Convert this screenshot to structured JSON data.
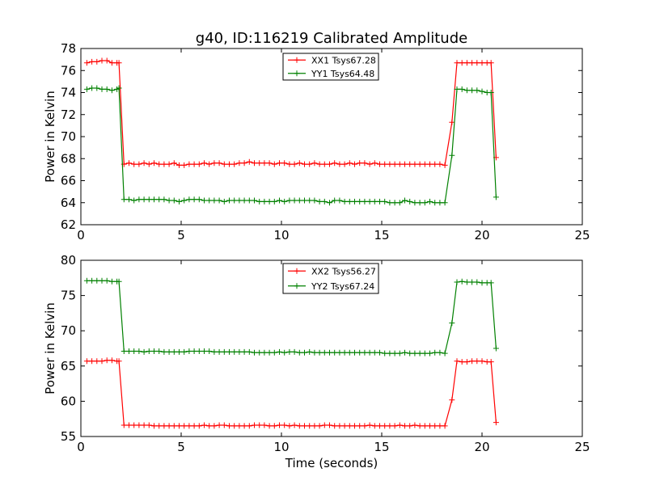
{
  "figure": {
    "title": "g40, ID:116219 Calibrated Amplitude",
    "xlabel": "Time (seconds)"
  },
  "colors": {
    "red": "#ff0000",
    "green": "#008000"
  },
  "chart_data": [
    {
      "type": "line",
      "title": "g40, ID:116219 Calibrated Amplitude",
      "xlabel": "",
      "ylabel": "Power in Kelvin",
      "xlim": [
        0,
        25
      ],
      "ylim": [
        62,
        78
      ],
      "xticks": [
        0,
        5,
        10,
        15,
        20,
        25
      ],
      "yticks": [
        62,
        64,
        66,
        68,
        70,
        72,
        74,
        76,
        78
      ],
      "legend_position": "top-center",
      "series": [
        {
          "name": "XX1 Tsys67.28",
          "color": "#ff0000",
          "x": [
            0.3,
            0.55,
            0.8,
            1.05,
            1.3,
            1.55,
            1.8,
            1.9,
            2.15,
            2.4,
            2.65,
            2.9,
            3.15,
            3.4,
            3.65,
            3.9,
            4.15,
            4.4,
            4.65,
            4.9,
            5.15,
            5.4,
            5.65,
            5.9,
            6.15,
            6.4,
            6.65,
            6.9,
            7.15,
            7.4,
            7.65,
            7.9,
            8.15,
            8.4,
            8.65,
            8.9,
            9.15,
            9.4,
            9.65,
            9.9,
            10.15,
            10.4,
            10.65,
            10.9,
            11.15,
            11.4,
            11.65,
            11.9,
            12.15,
            12.4,
            12.65,
            12.9,
            13.15,
            13.4,
            13.65,
            13.9,
            14.15,
            14.4,
            14.65,
            14.9,
            15.15,
            15.4,
            15.65,
            15.9,
            16.15,
            16.4,
            16.65,
            16.9,
            17.15,
            17.4,
            17.65,
            17.9,
            18.15,
            18.5,
            18.75,
            19.0,
            19.25,
            19.5,
            19.75,
            20.0,
            20.25,
            20.45,
            20.7
          ],
          "values": [
            76.7,
            76.8,
            76.8,
            76.9,
            76.9,
            76.7,
            76.7,
            76.7,
            67.5,
            67.6,
            67.5,
            67.5,
            67.6,
            67.5,
            67.6,
            67.5,
            67.5,
            67.5,
            67.6,
            67.4,
            67.4,
            67.5,
            67.5,
            67.5,
            67.6,
            67.5,
            67.6,
            67.6,
            67.5,
            67.5,
            67.5,
            67.6,
            67.6,
            67.7,
            67.6,
            67.6,
            67.6,
            67.6,
            67.5,
            67.6,
            67.6,
            67.5,
            67.5,
            67.6,
            67.5,
            67.5,
            67.6,
            67.5,
            67.5,
            67.5,
            67.6,
            67.5,
            67.5,
            67.6,
            67.5,
            67.6,
            67.6,
            67.5,
            67.6,
            67.5,
            67.5,
            67.5,
            67.5,
            67.5,
            67.5,
            67.5,
            67.5,
            67.5,
            67.5,
            67.5,
            67.5,
            67.5,
            67.4,
            71.3,
            76.7,
            76.7,
            76.7,
            76.7,
            76.7,
            76.7,
            76.7,
            76.7,
            68.1
          ]
        },
        {
          "name": "YY1 Tsys64.48",
          "color": "#008000",
          "x": [
            0.3,
            0.55,
            0.8,
            1.05,
            1.3,
            1.55,
            1.8,
            1.9,
            2.15,
            2.4,
            2.65,
            2.9,
            3.15,
            3.4,
            3.65,
            3.9,
            4.15,
            4.4,
            4.65,
            4.9,
            5.15,
            5.4,
            5.65,
            5.9,
            6.15,
            6.4,
            6.65,
            6.9,
            7.15,
            7.4,
            7.65,
            7.9,
            8.15,
            8.4,
            8.65,
            8.9,
            9.15,
            9.4,
            9.65,
            9.9,
            10.15,
            10.4,
            10.65,
            10.9,
            11.15,
            11.4,
            11.65,
            11.9,
            12.15,
            12.4,
            12.65,
            12.9,
            13.15,
            13.4,
            13.65,
            13.9,
            14.15,
            14.4,
            14.65,
            14.9,
            15.15,
            15.4,
            15.65,
            15.9,
            16.15,
            16.4,
            16.65,
            16.9,
            17.15,
            17.4,
            17.65,
            17.9,
            18.15,
            18.5,
            18.75,
            19.0,
            19.25,
            19.5,
            19.75,
            20.0,
            20.25,
            20.45,
            20.7
          ],
          "values": [
            74.3,
            74.4,
            74.4,
            74.3,
            74.3,
            74.2,
            74.3,
            74.4,
            64.3,
            64.3,
            64.2,
            64.3,
            64.3,
            64.3,
            64.3,
            64.3,
            64.3,
            64.2,
            64.2,
            64.1,
            64.2,
            64.3,
            64.3,
            64.3,
            64.2,
            64.2,
            64.2,
            64.2,
            64.1,
            64.2,
            64.2,
            64.2,
            64.2,
            64.2,
            64.2,
            64.1,
            64.1,
            64.1,
            64.1,
            64.2,
            64.1,
            64.2,
            64.2,
            64.2,
            64.2,
            64.2,
            64.2,
            64.1,
            64.1,
            64.0,
            64.2,
            64.2,
            64.1,
            64.1,
            64.1,
            64.1,
            64.1,
            64.1,
            64.1,
            64.1,
            64.1,
            64.0,
            64.0,
            64.0,
            64.2,
            64.1,
            64.0,
            64.0,
            64.0,
            64.1,
            64.0,
            64.0,
            64.0,
            68.3,
            74.3,
            74.3,
            74.2,
            74.2,
            74.2,
            74.1,
            74.0,
            74.0,
            64.5
          ]
        }
      ]
    },
    {
      "type": "line",
      "title": "",
      "xlabel": "Time (seconds)",
      "ylabel": "Power in Kelvin",
      "xlim": [
        0,
        25
      ],
      "ylim": [
        55,
        80
      ],
      "xticks": [
        0,
        5,
        10,
        15,
        20,
        25
      ],
      "yticks": [
        55,
        60,
        65,
        70,
        75,
        80
      ],
      "legend_position": "top-center",
      "series": [
        {
          "name": "XX2 Tsys56.27",
          "color": "#ff0000",
          "x": [
            0.3,
            0.55,
            0.8,
            1.05,
            1.3,
            1.55,
            1.8,
            1.9,
            2.15,
            2.4,
            2.65,
            2.9,
            3.15,
            3.4,
            3.65,
            3.9,
            4.15,
            4.4,
            4.65,
            4.9,
            5.15,
            5.4,
            5.65,
            5.9,
            6.15,
            6.4,
            6.65,
            6.9,
            7.15,
            7.4,
            7.65,
            7.9,
            8.15,
            8.4,
            8.65,
            8.9,
            9.15,
            9.4,
            9.65,
            9.9,
            10.15,
            10.4,
            10.65,
            10.9,
            11.15,
            11.4,
            11.65,
            11.9,
            12.15,
            12.4,
            12.65,
            12.9,
            13.15,
            13.4,
            13.65,
            13.9,
            14.15,
            14.4,
            14.65,
            14.9,
            15.15,
            15.4,
            15.65,
            15.9,
            16.15,
            16.4,
            16.65,
            16.9,
            17.15,
            17.4,
            17.65,
            17.9,
            18.15,
            18.5,
            18.75,
            19.0,
            19.25,
            19.5,
            19.75,
            20.0,
            20.25,
            20.45,
            20.7
          ],
          "values": [
            65.7,
            65.7,
            65.7,
            65.7,
            65.8,
            65.8,
            65.7,
            65.7,
            56.6,
            56.6,
            56.6,
            56.6,
            56.6,
            56.6,
            56.5,
            56.5,
            56.5,
            56.5,
            56.5,
            56.5,
            56.5,
            56.5,
            56.5,
            56.5,
            56.6,
            56.5,
            56.5,
            56.6,
            56.6,
            56.5,
            56.5,
            56.5,
            56.5,
            56.5,
            56.6,
            56.6,
            56.6,
            56.5,
            56.5,
            56.6,
            56.6,
            56.5,
            56.6,
            56.5,
            56.5,
            56.5,
            56.5,
            56.5,
            56.6,
            56.6,
            56.5,
            56.5,
            56.5,
            56.5,
            56.5,
            56.5,
            56.5,
            56.6,
            56.5,
            56.5,
            56.5,
            56.5,
            56.5,
            56.6,
            56.5,
            56.5,
            56.6,
            56.5,
            56.5,
            56.5,
            56.5,
            56.5,
            56.5,
            60.2,
            65.7,
            65.6,
            65.6,
            65.7,
            65.7,
            65.7,
            65.6,
            65.6,
            57.0
          ]
        },
        {
          "name": "YY2 Tsys67.24",
          "color": "#008000",
          "x": [
            0.3,
            0.55,
            0.8,
            1.05,
            1.3,
            1.55,
            1.8,
            1.9,
            2.15,
            2.4,
            2.65,
            2.9,
            3.15,
            3.4,
            3.65,
            3.9,
            4.15,
            4.4,
            4.65,
            4.9,
            5.15,
            5.4,
            5.65,
            5.9,
            6.15,
            6.4,
            6.65,
            6.9,
            7.15,
            7.4,
            7.65,
            7.9,
            8.15,
            8.4,
            8.65,
            8.9,
            9.15,
            9.4,
            9.65,
            9.9,
            10.15,
            10.4,
            10.65,
            10.9,
            11.15,
            11.4,
            11.65,
            11.9,
            12.15,
            12.4,
            12.65,
            12.9,
            13.15,
            13.4,
            13.65,
            13.9,
            14.15,
            14.4,
            14.65,
            14.9,
            15.15,
            15.4,
            15.65,
            15.9,
            16.15,
            16.4,
            16.65,
            16.9,
            17.15,
            17.4,
            17.65,
            17.9,
            18.15,
            18.5,
            18.75,
            19.0,
            19.25,
            19.5,
            19.75,
            20.0,
            20.25,
            20.45,
            20.7
          ],
          "values": [
            77.1,
            77.1,
            77.1,
            77.1,
            77.1,
            77.0,
            77.0,
            77.0,
            67.1,
            67.1,
            67.1,
            67.1,
            67.0,
            67.1,
            67.1,
            67.1,
            67.0,
            67.0,
            67.0,
            67.0,
            67.0,
            67.1,
            67.1,
            67.1,
            67.1,
            67.1,
            67.0,
            67.0,
            67.0,
            67.0,
            67.0,
            67.0,
            67.0,
            67.0,
            66.9,
            66.9,
            66.9,
            66.9,
            66.9,
            67.0,
            66.9,
            67.0,
            67.0,
            66.9,
            66.9,
            67.0,
            66.9,
            66.9,
            66.9,
            66.9,
            66.9,
            66.9,
            66.9,
            66.9,
            66.9,
            66.9,
            66.9,
            66.9,
            66.9,
            66.9,
            66.8,
            66.8,
            66.8,
            66.8,
            66.9,
            66.8,
            66.8,
            66.8,
            66.8,
            66.8,
            66.9,
            66.9,
            66.8,
            71.1,
            76.9,
            77.0,
            76.9,
            76.9,
            76.9,
            76.8,
            76.8,
            76.8,
            67.5
          ]
        }
      ]
    }
  ]
}
